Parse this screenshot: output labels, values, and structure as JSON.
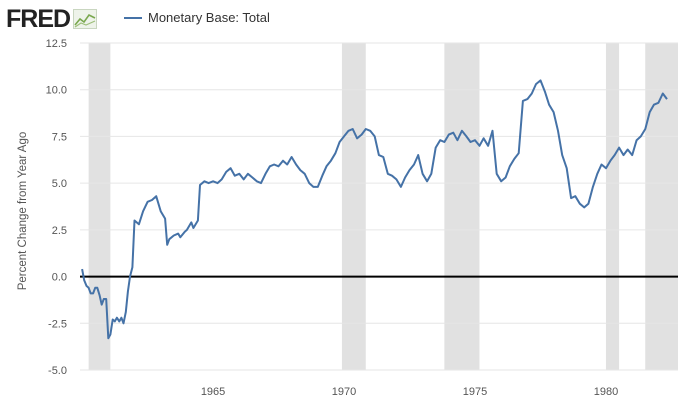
{
  "header": {
    "logo_text": "FRED",
    "logo_icon": "fred-chart-line-icon",
    "legend_label": "Monetary Base: Total"
  },
  "colors": {
    "series": "#4572a7",
    "recession": "#e1e1e1",
    "grid": "#e6e6e6",
    "zero_line": "#000000",
    "logo": "#222222"
  },
  "chart_data": {
    "type": "line",
    "title": "",
    "xlabel": "",
    "ylabel": "Percent Change from Year Ago",
    "xlim": [
      1959.92,
      1982.75
    ],
    "ylim": [
      -5.0,
      12.5
    ],
    "x_ticks": [
      1965,
      1970,
      1975,
      1980
    ],
    "x_tick_labels": [
      "1965",
      "1970",
      "1975",
      "1980"
    ],
    "y_ticks": [
      -5.0,
      -2.5,
      0.0,
      2.5,
      5.0,
      7.5,
      10.0,
      12.5
    ],
    "y_tick_labels": [
      "-5.0",
      "-2.5",
      "0.0",
      "2.5",
      "5.0",
      "7.5",
      "10.0",
      "12.5"
    ],
    "grid": "horizontal",
    "legend": "top-left",
    "reference_line": 0.0,
    "recessions": [
      [
        1960.25,
        1961.08
      ],
      [
        1969.92,
        1970.83
      ],
      [
        1973.83,
        1975.17
      ],
      [
        1980.0,
        1980.5
      ],
      [
        1981.5,
        1982.75
      ]
    ],
    "series": [
      {
        "name": "Monetary Base: Total",
        "points": [
          [
            1960.0,
            0.4
          ],
          [
            1960.08,
            -0.2
          ],
          [
            1960.17,
            -0.5
          ],
          [
            1960.25,
            -0.6
          ],
          [
            1960.33,
            -0.9
          ],
          [
            1960.42,
            -0.9
          ],
          [
            1960.5,
            -0.6
          ],
          [
            1960.58,
            -0.6
          ],
          [
            1960.67,
            -1.0
          ],
          [
            1960.75,
            -1.5
          ],
          [
            1960.83,
            -1.2
          ],
          [
            1960.92,
            -1.2
          ],
          [
            1961.0,
            -3.3
          ],
          [
            1961.08,
            -3.1
          ],
          [
            1961.17,
            -2.3
          ],
          [
            1961.25,
            -2.4
          ],
          [
            1961.33,
            -2.2
          ],
          [
            1961.42,
            -2.4
          ],
          [
            1961.5,
            -2.2
          ],
          [
            1961.58,
            -2.5
          ],
          [
            1961.67,
            -1.9
          ],
          [
            1961.75,
            -0.8
          ],
          [
            1961.83,
            0.0
          ],
          [
            1961.92,
            0.5
          ],
          [
            1962.0,
            3.0
          ],
          [
            1962.17,
            2.8
          ],
          [
            1962.33,
            3.5
          ],
          [
            1962.5,
            4.0
          ],
          [
            1962.67,
            4.1
          ],
          [
            1962.83,
            4.3
          ],
          [
            1963.0,
            3.5
          ],
          [
            1963.17,
            3.1
          ],
          [
            1963.25,
            1.7
          ],
          [
            1963.33,
            2.0
          ],
          [
            1963.5,
            2.2
          ],
          [
            1963.67,
            2.3
          ],
          [
            1963.75,
            2.1
          ],
          [
            1963.92,
            2.4
          ],
          [
            1964.0,
            2.5
          ],
          [
            1964.17,
            2.9
          ],
          [
            1964.25,
            2.6
          ],
          [
            1964.42,
            3.0
          ],
          [
            1964.5,
            4.9
          ],
          [
            1964.67,
            5.1
          ],
          [
            1964.83,
            5.0
          ],
          [
            1965.0,
            5.1
          ],
          [
            1965.17,
            5.0
          ],
          [
            1965.33,
            5.2
          ],
          [
            1965.5,
            5.6
          ],
          [
            1965.67,
            5.8
          ],
          [
            1965.83,
            5.4
          ],
          [
            1966.0,
            5.5
          ],
          [
            1966.17,
            5.2
          ],
          [
            1966.33,
            5.5
          ],
          [
            1966.5,
            5.3
          ],
          [
            1966.67,
            5.1
          ],
          [
            1966.83,
            5.0
          ],
          [
            1967.0,
            5.5
          ],
          [
            1967.17,
            5.9
          ],
          [
            1967.33,
            6.0
          ],
          [
            1967.5,
            5.9
          ],
          [
            1967.67,
            6.2
          ],
          [
            1967.83,
            6.0
          ],
          [
            1968.0,
            6.4
          ],
          [
            1968.17,
            6.0
          ],
          [
            1968.33,
            5.7
          ],
          [
            1968.5,
            5.5
          ],
          [
            1968.67,
            5.0
          ],
          [
            1968.83,
            4.8
          ],
          [
            1969.0,
            4.8
          ],
          [
            1969.17,
            5.4
          ],
          [
            1969.33,
            5.9
          ],
          [
            1969.5,
            6.2
          ],
          [
            1969.67,
            6.6
          ],
          [
            1969.83,
            7.2
          ],
          [
            1970.0,
            7.5
          ],
          [
            1970.17,
            7.8
          ],
          [
            1970.33,
            7.9
          ],
          [
            1970.5,
            7.4
          ],
          [
            1970.67,
            7.6
          ],
          [
            1970.83,
            7.9
          ],
          [
            1971.0,
            7.8
          ],
          [
            1971.17,
            7.5
          ],
          [
            1971.33,
            6.5
          ],
          [
            1971.5,
            6.4
          ],
          [
            1971.67,
            5.5
          ],
          [
            1971.83,
            5.4
          ],
          [
            1972.0,
            5.2
          ],
          [
            1972.17,
            4.8
          ],
          [
            1972.33,
            5.3
          ],
          [
            1972.5,
            5.7
          ],
          [
            1972.67,
            6.0
          ],
          [
            1972.83,
            6.5
          ],
          [
            1973.0,
            5.5
          ],
          [
            1973.17,
            5.1
          ],
          [
            1973.33,
            5.5
          ],
          [
            1973.5,
            6.9
          ],
          [
            1973.67,
            7.3
          ],
          [
            1973.83,
            7.2
          ],
          [
            1974.0,
            7.6
          ],
          [
            1974.17,
            7.7
          ],
          [
            1974.33,
            7.3
          ],
          [
            1974.5,
            7.8
          ],
          [
            1974.67,
            7.5
          ],
          [
            1974.83,
            7.2
          ],
          [
            1975.0,
            7.3
          ],
          [
            1975.17,
            7.0
          ],
          [
            1975.33,
            7.4
          ],
          [
            1975.5,
            7.0
          ],
          [
            1975.67,
            7.8
          ],
          [
            1975.83,
            5.5
          ],
          [
            1976.0,
            5.1
          ],
          [
            1976.17,
            5.3
          ],
          [
            1976.33,
            5.9
          ],
          [
            1976.5,
            6.3
          ],
          [
            1976.67,
            6.6
          ],
          [
            1976.83,
            9.4
          ],
          [
            1977.0,
            9.5
          ],
          [
            1977.17,
            9.8
          ],
          [
            1977.33,
            10.3
          ],
          [
            1977.5,
            10.5
          ],
          [
            1977.67,
            9.9
          ],
          [
            1977.83,
            9.2
          ],
          [
            1978.0,
            8.8
          ],
          [
            1978.17,
            7.8
          ],
          [
            1978.33,
            6.5
          ],
          [
            1978.5,
            5.8
          ],
          [
            1978.67,
            4.2
          ],
          [
            1978.83,
            4.3
          ],
          [
            1979.0,
            3.9
          ],
          [
            1979.17,
            3.7
          ],
          [
            1979.33,
            3.9
          ],
          [
            1979.5,
            4.8
          ],
          [
            1979.67,
            5.5
          ],
          [
            1979.83,
            6.0
          ],
          [
            1980.0,
            5.8
          ],
          [
            1980.17,
            6.2
          ],
          [
            1980.33,
            6.5
          ],
          [
            1980.5,
            6.9
          ],
          [
            1980.67,
            6.5
          ],
          [
            1980.83,
            6.8
          ],
          [
            1981.0,
            6.5
          ],
          [
            1981.17,
            7.3
          ],
          [
            1981.33,
            7.5
          ],
          [
            1981.5,
            7.9
          ],
          [
            1981.67,
            8.8
          ],
          [
            1981.83,
            9.2
          ],
          [
            1982.0,
            9.3
          ],
          [
            1982.17,
            9.8
          ],
          [
            1982.33,
            9.5
          ]
        ]
      }
    ]
  }
}
